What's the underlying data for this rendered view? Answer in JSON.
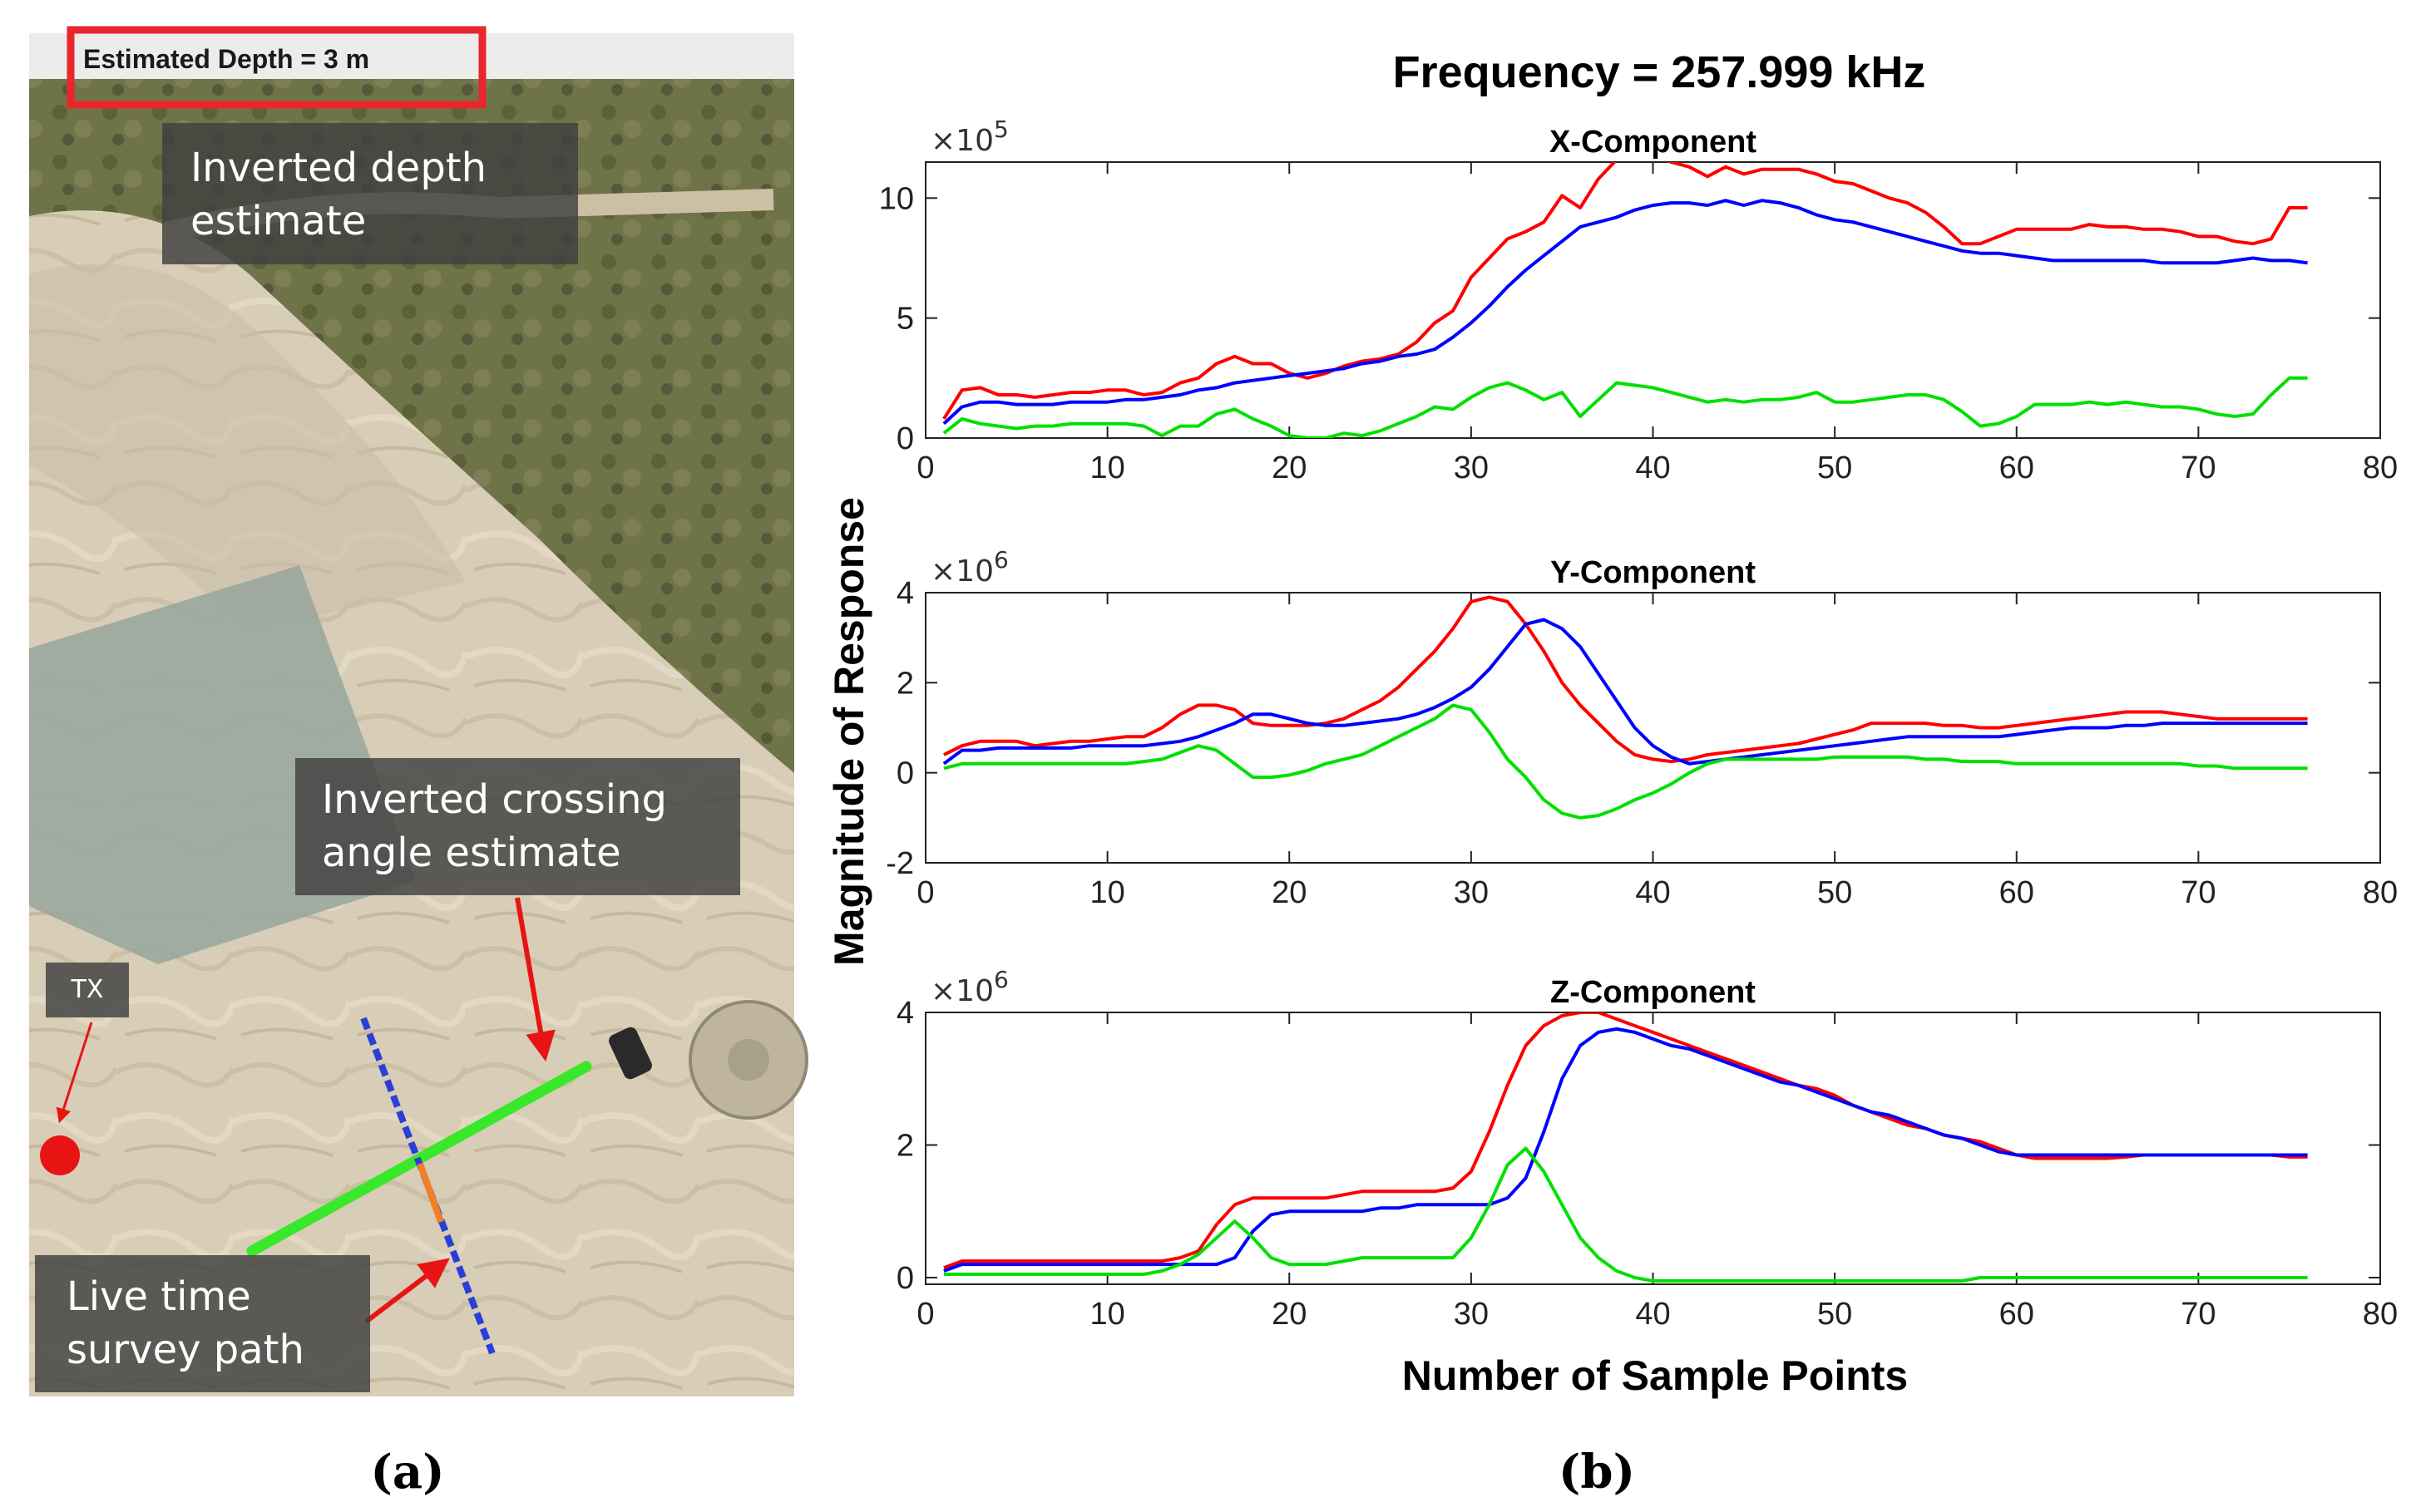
{
  "panel_a": {
    "depth_label": "Estimated Depth = 3 m",
    "annotations": {
      "depth": "Inverted depth\nestimate",
      "angle": "Inverted crossing\nangle estimate",
      "survey": "Live time\nsurvey path",
      "tx": "TX"
    },
    "caption": "(a)",
    "colors": {
      "highlight_box": "#e8262b",
      "crossing_line": "#39e82b",
      "survey_path": "#2a3fd6",
      "tx_marker": "#e81414",
      "arrow": "#e81414"
    }
  },
  "panel_b": {
    "title": "Frequency = 257.999 kHz",
    "ylabel": "Magnitude of Response",
    "xlabel": "Number of Sample Points",
    "caption": "(b)",
    "series_colors": [
      "#ff0000",
      "#0000ff",
      "#00e000"
    ]
  },
  "chart_data": [
    {
      "type": "line",
      "title": "X-Component",
      "exponent": "5",
      "xlim": [
        0,
        80
      ],
      "ylim": [
        0,
        11.5
      ],
      "xticks": [
        0,
        10,
        20,
        30,
        40,
        50,
        60,
        70,
        80
      ],
      "yticks": [
        0,
        5,
        10
      ],
      "x": [
        1,
        2,
        3,
        4,
        5,
        6,
        7,
        8,
        9,
        10,
        11,
        12,
        13,
        14,
        15,
        16,
        17,
        18,
        19,
        20,
        21,
        22,
        23,
        24,
        25,
        26,
        27,
        28,
        29,
        30,
        31,
        32,
        33,
        34,
        35,
        36,
        37,
        38,
        39,
        40,
        41,
        42,
        43,
        44,
        45,
        46,
        47,
        48,
        49,
        50,
        51,
        52,
        53,
        54,
        55,
        56,
        57,
        58,
        59,
        60,
        61,
        62,
        63,
        64,
        65,
        66,
        67,
        68,
        69,
        70,
        71,
        72,
        73,
        74,
        75,
        76
      ],
      "series": [
        {
          "values": [
            0.8,
            2.0,
            2.1,
            1.8,
            1.8,
            1.7,
            1.8,
            1.9,
            1.9,
            2.0,
            2.0,
            1.8,
            1.9,
            2.3,
            2.5,
            3.1,
            3.4,
            3.1,
            3.1,
            2.7,
            2.5,
            2.7,
            3.0,
            3.2,
            3.3,
            3.5,
            4.0,
            4.8,
            5.3,
            6.7,
            7.5,
            8.3,
            8.6,
            9.0,
            10.1,
            9.6,
            10.8,
            11.6,
            11.6,
            11.8,
            11.5,
            11.3,
            10.9,
            11.3,
            11.0,
            11.2,
            11.2,
            11.2,
            11.0,
            10.7,
            10.6,
            10.3,
            10.0,
            9.8,
            9.4,
            8.8,
            8.1,
            8.1,
            8.4,
            8.7,
            8.7,
            8.7,
            8.7,
            8.9,
            8.8,
            8.8,
            8.7,
            8.7,
            8.6,
            8.4,
            8.4,
            8.2,
            8.1,
            8.3,
            9.6,
            9.6
          ]
        },
        {
          "values": [
            0.6,
            1.3,
            1.5,
            1.5,
            1.4,
            1.4,
            1.4,
            1.5,
            1.5,
            1.5,
            1.6,
            1.6,
            1.7,
            1.8,
            2.0,
            2.1,
            2.3,
            2.4,
            2.5,
            2.6,
            2.7,
            2.8,
            2.9,
            3.1,
            3.2,
            3.4,
            3.5,
            3.7,
            4.2,
            4.8,
            5.5,
            6.3,
            7.0,
            7.6,
            8.2,
            8.8,
            9.0,
            9.2,
            9.5,
            9.7,
            9.8,
            9.8,
            9.7,
            9.9,
            9.7,
            9.9,
            9.8,
            9.6,
            9.3,
            9.1,
            9.0,
            8.8,
            8.6,
            8.4,
            8.2,
            8.0,
            7.8,
            7.7,
            7.7,
            7.6,
            7.5,
            7.4,
            7.4,
            7.4,
            7.4,
            7.4,
            7.4,
            7.3,
            7.3,
            7.3,
            7.3,
            7.4,
            7.5,
            7.4,
            7.4,
            7.3
          ]
        },
        {
          "values": [
            0.2,
            0.8,
            0.6,
            0.5,
            0.4,
            0.5,
            0.5,
            0.6,
            0.6,
            0.6,
            0.6,
            0.5,
            0.1,
            0.5,
            0.5,
            1.0,
            1.2,
            0.8,
            0.5,
            0.1,
            0.0,
            0.0,
            0.2,
            0.1,
            0.3,
            0.6,
            0.9,
            1.3,
            1.2,
            1.7,
            2.1,
            2.3,
            2.0,
            1.6,
            1.9,
            0.9,
            1.6,
            2.3,
            2.2,
            2.1,
            1.9,
            1.7,
            1.5,
            1.6,
            1.5,
            1.6,
            1.6,
            1.7,
            1.9,
            1.5,
            1.5,
            1.6,
            1.7,
            1.8,
            1.8,
            1.6,
            1.1,
            0.5,
            0.6,
            0.9,
            1.4,
            1.4,
            1.4,
            1.5,
            1.4,
            1.5,
            1.4,
            1.3,
            1.3,
            1.2,
            1.0,
            0.9,
            1.0,
            1.8,
            2.5,
            2.5
          ]
        }
      ]
    },
    {
      "type": "line",
      "title": "Y-Component",
      "exponent": "6",
      "xlim": [
        0,
        80
      ],
      "ylim": [
        -2,
        4
      ],
      "xticks": [
        0,
        10,
        20,
        30,
        40,
        50,
        60,
        70,
        80
      ],
      "yticks": [
        -2,
        0,
        2,
        4
      ],
      "x": [
        1,
        2,
        3,
        4,
        5,
        6,
        7,
        8,
        9,
        10,
        11,
        12,
        13,
        14,
        15,
        16,
        17,
        18,
        19,
        20,
        21,
        22,
        23,
        24,
        25,
        26,
        27,
        28,
        29,
        30,
        31,
        32,
        33,
        34,
        35,
        36,
        37,
        38,
        39,
        40,
        41,
        42,
        43,
        44,
        45,
        46,
        47,
        48,
        49,
        50,
        51,
        52,
        53,
        54,
        55,
        56,
        57,
        58,
        59,
        60,
        61,
        62,
        63,
        64,
        65,
        66,
        67,
        68,
        69,
        70,
        71,
        72,
        73,
        74,
        75,
        76
      ],
      "series": [
        {
          "values": [
            0.4,
            0.6,
            0.7,
            0.7,
            0.7,
            0.6,
            0.65,
            0.7,
            0.7,
            0.75,
            0.8,
            0.8,
            1.0,
            1.3,
            1.5,
            1.5,
            1.4,
            1.1,
            1.05,
            1.05,
            1.05,
            1.1,
            1.2,
            1.4,
            1.6,
            1.9,
            2.3,
            2.7,
            3.2,
            3.8,
            3.9,
            3.8,
            3.3,
            2.7,
            2.0,
            1.5,
            1.1,
            0.7,
            0.4,
            0.3,
            0.25,
            0.3,
            0.4,
            0.45,
            0.5,
            0.55,
            0.6,
            0.65,
            0.75,
            0.85,
            0.95,
            1.1,
            1.1,
            1.1,
            1.1,
            1.05,
            1.05,
            1.0,
            1.0,
            1.05,
            1.1,
            1.15,
            1.2,
            1.25,
            1.3,
            1.35,
            1.35,
            1.35,
            1.3,
            1.25,
            1.2,
            1.2,
            1.2,
            1.2,
            1.2,
            1.2
          ]
        },
        {
          "values": [
            0.2,
            0.5,
            0.5,
            0.55,
            0.55,
            0.55,
            0.55,
            0.55,
            0.6,
            0.6,
            0.6,
            0.6,
            0.65,
            0.7,
            0.8,
            0.95,
            1.1,
            1.3,
            1.3,
            1.2,
            1.1,
            1.05,
            1.05,
            1.1,
            1.15,
            1.2,
            1.3,
            1.45,
            1.65,
            1.9,
            2.3,
            2.8,
            3.3,
            3.4,
            3.2,
            2.8,
            2.2,
            1.6,
            1.0,
            0.6,
            0.35,
            0.2,
            0.25,
            0.3,
            0.35,
            0.4,
            0.45,
            0.5,
            0.55,
            0.6,
            0.65,
            0.7,
            0.75,
            0.8,
            0.8,
            0.8,
            0.8,
            0.8,
            0.8,
            0.85,
            0.9,
            0.95,
            1.0,
            1.0,
            1.0,
            1.05,
            1.05,
            1.1,
            1.1,
            1.1,
            1.1,
            1.1,
            1.1,
            1.1,
            1.1,
            1.1
          ]
        },
        {
          "values": [
            0.1,
            0.2,
            0.2,
            0.2,
            0.2,
            0.2,
            0.2,
            0.2,
            0.2,
            0.2,
            0.2,
            0.25,
            0.3,
            0.45,
            0.6,
            0.5,
            0.2,
            -0.1,
            -0.1,
            -0.05,
            0.05,
            0.2,
            0.3,
            0.4,
            0.6,
            0.8,
            1.0,
            1.2,
            1.5,
            1.4,
            0.9,
            0.3,
            -0.1,
            -0.6,
            -0.9,
            -1.0,
            -0.95,
            -0.8,
            -0.6,
            -0.45,
            -0.25,
            0.0,
            0.2,
            0.3,
            0.3,
            0.3,
            0.3,
            0.3,
            0.3,
            0.35,
            0.35,
            0.35,
            0.35,
            0.35,
            0.3,
            0.3,
            0.25,
            0.25,
            0.25,
            0.2,
            0.2,
            0.2,
            0.2,
            0.2,
            0.2,
            0.2,
            0.2,
            0.2,
            0.2,
            0.15,
            0.15,
            0.1,
            0.1,
            0.1,
            0.1,
            0.1
          ]
        }
      ]
    },
    {
      "type": "line",
      "title": "Z-Component",
      "exponent": "6",
      "xlim": [
        0,
        80
      ],
      "ylim": [
        -0.1,
        4
      ],
      "xticks": [
        0,
        10,
        20,
        30,
        40,
        50,
        60,
        70,
        80
      ],
      "yticks": [
        0,
        2,
        4
      ],
      "x": [
        1,
        2,
        3,
        4,
        5,
        6,
        7,
        8,
        9,
        10,
        11,
        12,
        13,
        14,
        15,
        16,
        17,
        18,
        19,
        20,
        21,
        22,
        23,
        24,
        25,
        26,
        27,
        28,
        29,
        30,
        31,
        32,
        33,
        34,
        35,
        36,
        37,
        38,
        39,
        40,
        41,
        42,
        43,
        44,
        45,
        46,
        47,
        48,
        49,
        50,
        51,
        52,
        53,
        54,
        55,
        56,
        57,
        58,
        59,
        60,
        61,
        62,
        63,
        64,
        65,
        66,
        67,
        68,
        69,
        70,
        71,
        72,
        73,
        74,
        75,
        76
      ],
      "series": [
        {
          "values": [
            0.15,
            0.25,
            0.25,
            0.25,
            0.25,
            0.25,
            0.25,
            0.25,
            0.25,
            0.25,
            0.25,
            0.25,
            0.25,
            0.3,
            0.4,
            0.8,
            1.1,
            1.2,
            1.2,
            1.2,
            1.2,
            1.2,
            1.25,
            1.3,
            1.3,
            1.3,
            1.3,
            1.3,
            1.35,
            1.6,
            2.2,
            2.9,
            3.5,
            3.8,
            3.95,
            4.0,
            4.0,
            3.9,
            3.8,
            3.7,
            3.6,
            3.5,
            3.4,
            3.3,
            3.2,
            3.1,
            3.0,
            2.9,
            2.85,
            2.75,
            2.6,
            2.5,
            2.4,
            2.3,
            2.25,
            2.15,
            2.1,
            2.05,
            1.95,
            1.85,
            1.8,
            1.8,
            1.8,
            1.8,
            1.8,
            1.82,
            1.85,
            1.85,
            1.85,
            1.85,
            1.85,
            1.85,
            1.85,
            1.85,
            1.82,
            1.82
          ]
        },
        {
          "values": [
            0.1,
            0.2,
            0.2,
            0.2,
            0.2,
            0.2,
            0.2,
            0.2,
            0.2,
            0.2,
            0.2,
            0.2,
            0.2,
            0.2,
            0.2,
            0.2,
            0.3,
            0.7,
            0.95,
            1.0,
            1.0,
            1.0,
            1.0,
            1.0,
            1.05,
            1.05,
            1.1,
            1.1,
            1.1,
            1.1,
            1.1,
            1.2,
            1.5,
            2.2,
            3.0,
            3.5,
            3.7,
            3.75,
            3.7,
            3.6,
            3.5,
            3.45,
            3.35,
            3.25,
            3.15,
            3.05,
            2.95,
            2.9,
            2.8,
            2.7,
            2.6,
            2.5,
            2.45,
            2.35,
            2.25,
            2.15,
            2.1,
            2.0,
            1.9,
            1.85,
            1.85,
            1.85,
            1.85,
            1.85,
            1.85,
            1.85,
            1.85,
            1.85,
            1.85,
            1.85,
            1.85,
            1.85,
            1.85,
            1.85,
            1.85,
            1.85
          ]
        },
        {
          "values": [
            0.05,
            0.05,
            0.05,
            0.05,
            0.05,
            0.05,
            0.05,
            0.05,
            0.05,
            0.05,
            0.05,
            0.05,
            0.1,
            0.2,
            0.35,
            0.6,
            0.85,
            0.6,
            0.3,
            0.2,
            0.2,
            0.2,
            0.25,
            0.3,
            0.3,
            0.3,
            0.3,
            0.3,
            0.3,
            0.6,
            1.1,
            1.7,
            1.95,
            1.6,
            1.1,
            0.6,
            0.3,
            0.1,
            0.0,
            -0.05,
            -0.05,
            -0.05,
            -0.05,
            -0.05,
            -0.05,
            -0.05,
            -0.05,
            -0.05,
            -0.05,
            -0.05,
            -0.05,
            -0.05,
            -0.05,
            -0.05,
            -0.05,
            -0.05,
            -0.05,
            0.0,
            0.0,
            0.0,
            0.0,
            0.0,
            0.0,
            0.0,
            0.0,
            0.0,
            0.0,
            0.0,
            0.0,
            0.0,
            0.0,
            0.0,
            0.0,
            0.0,
            0.0,
            0.0
          ]
        }
      ]
    }
  ]
}
